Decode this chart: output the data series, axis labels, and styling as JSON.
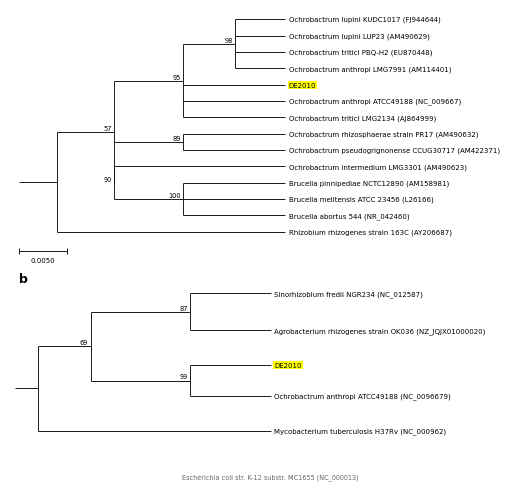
{
  "background": "#ffffff",
  "tree_color": "#1a1a1a",
  "label_fontsize": 5.0,
  "bootstrap_fontsize": 4.8,
  "panel_label_fontsize": 9,
  "highlight_color": "#ffff00",
  "tree_a": {
    "highlight_taxon": "DE2010",
    "scalebar_label": "0.0050",
    "taxa": [
      "Ochrobactrum lupini KUDC1017 (FJ944644)",
      "Ochrobactrum lupini LUP23 (AM490629)",
      "Ochrobactrum tritici PBQ-H2 (EU870448)",
      "Ochrobactrum anthropi LMG7991 (AM114401)",
      "DE2010",
      "Ochrobactrum anthropi ATCC49188 (NC_009667)",
      "Ochrobactrum tritici LMG2134 (AJ864999)",
      "Ochrobactrum rhizosphaerae strain PR17 (AM490632)",
      "Ochrobactrum pseudogrignonense CCUG30717 (AM422371)",
      "Ochrobactrum intermedium LMG3301 (AM490623)",
      "Brucella pinnipediae NCTC12890 (AM158981)",
      "Brucella melitensis ATCC 23456 (L26166)",
      "Brucella abortus 544 (NR_042460)",
      "Rhizobium rhizogenes strain 163C (AY206687)"
    ]
  },
  "tree_b": {
    "highlight_taxon": "DE2010",
    "taxa": [
      "Sinorhizobium fredii NGR234 (NC_012587)",
      "Agrobacterium rhizogenes strain OK036 (NZ_JQJX01000020)",
      "DE2010",
      "Ochrobactrum anthropi ATCC49188 (NC_0096679)",
      "Mycobacterium tuberculosis H37Rv (NC_000962)"
    ]
  },
  "bottom_label": "Escherichia coli str. K-12 substr. MC1655 (NC_000013)"
}
